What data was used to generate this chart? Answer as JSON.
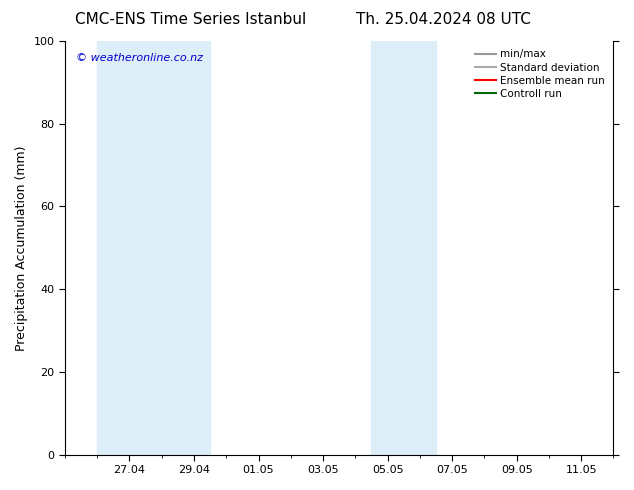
{
  "title_left": "CMC-ENS Time Series Istanbul",
  "title_right": "Th. 25.04.2024 08 UTC",
  "ylabel": "Precipitation Accumulation (mm)",
  "ylim": [
    0,
    100
  ],
  "yticks": [
    0,
    20,
    40,
    60,
    80,
    100
  ],
  "xtick_labels": [
    "27.04",
    "29.04",
    "01.05",
    "03.05",
    "05.05",
    "07.05",
    "09.05",
    "11.05"
  ],
  "xtick_positions": [
    2,
    4,
    6,
    8,
    10,
    12,
    14,
    16
  ],
  "xmin": 0,
  "xmax": 17,
  "shaded_regions": [
    {
      "xstart": 1.0,
      "xend": 4.5
    },
    {
      "xstart": 9.5,
      "xend": 11.5
    }
  ],
  "shaded_color": "#ddeef8",
  "watermark_text": "© weatheronline.co.nz",
  "watermark_color": "#0000cc",
  "legend_labels": [
    "min/max",
    "Standard deviation",
    "Ensemble mean run",
    "Controll run"
  ],
  "legend_colors_line": [
    "#999999",
    "#aaaaaa",
    "#ff0000",
    "#006600"
  ],
  "background_color": "#ffffff",
  "title_fontsize": 11,
  "axis_fontsize": 9,
  "tick_fontsize": 8,
  "legend_fontsize": 7.5
}
